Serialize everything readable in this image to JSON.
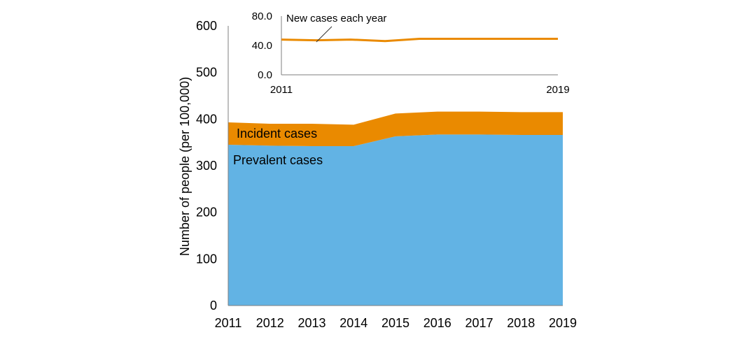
{
  "chart_data": [
    {
      "type": "area",
      "stacked": true,
      "x": [
        "2011",
        "2012",
        "2013",
        "2014",
        "2015",
        "2016",
        "2017",
        "2018",
        "2019"
      ],
      "ylabel": "Number of people (per 100,000)",
      "ylim": [
        0,
        600
      ],
      "yticks": [
        "0",
        "100",
        "200",
        "300",
        "400",
        "500",
        "600"
      ],
      "series": [
        {
          "name": "Prevalent cases",
          "values": [
            345,
            343,
            342,
            342,
            363,
            367,
            367,
            366,
            366
          ]
        },
        {
          "name": "Incident cases",
          "values": [
            48,
            47,
            48,
            46,
            49,
            49,
            49,
            49,
            49
          ]
        }
      ],
      "colors": {
        "Prevalent cases": "#62b3e4",
        "Incident cases": "#ea8a00"
      },
      "grid": false
    },
    {
      "type": "line",
      "x": [
        "2011",
        "2012",
        "2013",
        "2014",
        "2015",
        "2016",
        "2017",
        "2018",
        "2019"
      ],
      "xticks": [
        "2011",
        "2019"
      ],
      "ylim": [
        0,
        80
      ],
      "yticks": [
        "0.0",
        "40.0",
        "80.0"
      ],
      "series": [
        {
          "name": "New cases each year",
          "values": [
            48,
            47,
            48,
            46,
            49,
            49,
            49,
            49,
            49
          ]
        }
      ],
      "color": "#ea8a00",
      "grid": false
    }
  ]
}
